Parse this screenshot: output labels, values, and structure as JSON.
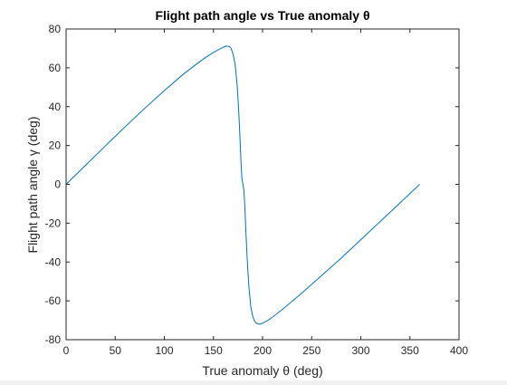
{
  "chart_data": {
    "type": "line",
    "title": "Flight path angle vs True anomaly θ",
    "xlabel": "True anomaly θ (deg)",
    "ylabel": "Flight path angle γ (deg)",
    "xlim": [
      0,
      400
    ],
    "ylim": [
      -80,
      80
    ],
    "xticks": [
      0,
      50,
      100,
      150,
      200,
      250,
      300,
      350,
      400
    ],
    "yticks": [
      -80,
      -60,
      -40,
      -20,
      0,
      20,
      40,
      60,
      80
    ],
    "grid": false,
    "series": [
      {
        "name": "gamma",
        "color": "#0072bd",
        "x": [
          0,
          20,
          40,
          60,
          80,
          100,
          120,
          140,
          150,
          155,
          160,
          163,
          166,
          168,
          170,
          172,
          174,
          175,
          176,
          177,
          178,
          179,
          180,
          181,
          182,
          183,
          184,
          185,
          186,
          188,
          190,
          192,
          194,
          197,
          200,
          205,
          210,
          220,
          240,
          260,
          280,
          300,
          320,
          340,
          360
        ],
        "y": [
          0,
          9.9,
          19.8,
          29.6,
          39.1,
          48.3,
          57,
          64.7,
          67.9,
          69.3,
          70.6,
          71.2,
          71,
          70,
          67,
          62,
          52,
          44,
          35,
          24,
          12,
          3,
          0,
          -3,
          -12,
          -24,
          -35,
          -44,
          -52,
          -63,
          -68,
          -70.5,
          -71.6,
          -72,
          -71.5,
          -70.2,
          -68.4,
          -64.5,
          -56,
          -47,
          -38,
          -28.5,
          -19,
          -9.5,
          0
        ]
      }
    ]
  }
}
